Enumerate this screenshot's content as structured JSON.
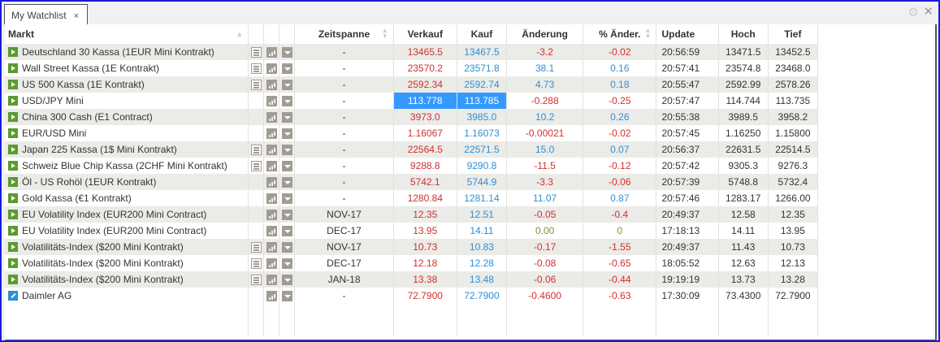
{
  "tab": {
    "label": "My Watchlist",
    "close": "×"
  },
  "window_icons": {
    "settings": "gear-icon",
    "close": "close-icon"
  },
  "columns": {
    "markt": "Markt",
    "zeitspanne": "Zeitspanne",
    "verkauf": "Verkauf",
    "kauf": "Kauf",
    "aenderung": "Änderung",
    "pct": "% Änder.",
    "update": "Update",
    "hoch": "Hoch",
    "tief": "Tief"
  },
  "colors": {
    "sell": "#d32f2f",
    "buy": "#2f8fd6",
    "up": "#2f8fd6",
    "down": "#d32f2f",
    "neutral": "#7a9a2a",
    "selected": "#3399ff",
    "market_icon": "#5a9b2e",
    "stock_icon": "#2b8fd6"
  },
  "rows": [
    {
      "name": "Deutschland 30 Kassa (1EUR Mini Kontrakt)",
      "icon": "play",
      "news": true,
      "period": "-",
      "sell": "13465.5",
      "buy": "13467.5",
      "chg": "-3.2",
      "pct": "-0.02",
      "dir": "down",
      "update": "20:56:59",
      "high": "13471.5",
      "low": "13452.5"
    },
    {
      "name": "Wall Street Kassa (1E Kontrakt)",
      "icon": "play",
      "news": true,
      "period": "-",
      "sell": "23570.2",
      "buy": "23571.8",
      "chg": "38.1",
      "pct": "0.16",
      "dir": "up",
      "update": "20:57:41",
      "high": "23574.8",
      "low": "23468.0"
    },
    {
      "name": "US 500 Kassa (1E Kontrakt)",
      "icon": "play",
      "news": true,
      "period": "-",
      "sell": "2592.34",
      "buy": "2592.74",
      "chg": "4.73",
      "pct": "0.18",
      "dir": "up",
      "update": "20:55:47",
      "high": "2592.99",
      "low": "2578.26"
    },
    {
      "name": "USD/JPY Mini",
      "icon": "play",
      "news": false,
      "period": "-",
      "sell": "113.778",
      "buy": "113.785",
      "chg": "-0.288",
      "pct": "-0.25",
      "dir": "down",
      "update": "20:57:47",
      "high": "114.744",
      "low": "113.735",
      "selected": true
    },
    {
      "name": "China 300 Cash (E1 Contract)",
      "icon": "play",
      "news": false,
      "period": "-",
      "sell": "3973.0",
      "buy": "3985.0",
      "chg": "10.2",
      "pct": "0.26",
      "dir": "up",
      "update": "20:55:38",
      "high": "3989.5",
      "low": "3958.2"
    },
    {
      "name": "EUR/USD Mini",
      "icon": "play",
      "news": false,
      "period": "-",
      "sell": "1.16067",
      "buy": "1.16073",
      "chg": "-0.00021",
      "pct": "-0.02",
      "dir": "down",
      "update": "20:57:45",
      "high": "1.16250",
      "low": "1.15800"
    },
    {
      "name": "Japan 225 Kassa (1$ Mini Kontrakt)",
      "icon": "play",
      "news": true,
      "period": "-",
      "sell": "22564.5",
      "buy": "22571.5",
      "chg": "15.0",
      "pct": "0.07",
      "dir": "up",
      "update": "20:56:37",
      "high": "22631.5",
      "low": "22514.5"
    },
    {
      "name": "Schweiz Blue Chip Kassa (2CHF Mini Kontrakt)",
      "icon": "play",
      "news": true,
      "period": "-",
      "sell": "9288.8",
      "buy": "9290.8",
      "chg": "-11.5",
      "pct": "-0.12",
      "dir": "down",
      "update": "20:57:42",
      "high": "9305.3",
      "low": "9276.3"
    },
    {
      "name": "Öl - US Rohöl (1EUR Kontrakt)",
      "icon": "play",
      "news": false,
      "period": "-",
      "sell": "5742.1",
      "buy": "5744.9",
      "chg": "-3.3",
      "pct": "-0.06",
      "dir": "down",
      "update": "20:57:39",
      "high": "5748.8",
      "low": "5732.4"
    },
    {
      "name": "Gold Kassa (€1 Kontrakt)",
      "icon": "play",
      "news": false,
      "period": "-",
      "sell": "1280.84",
      "buy": "1281.14",
      "chg": "11.07",
      "pct": "0.87",
      "dir": "up",
      "update": "20:57:46",
      "high": "1283.17",
      "low": "1266.00"
    },
    {
      "name": "EU Volatility Index (EUR200 Mini Contract)",
      "icon": "play",
      "news": false,
      "period": "NOV-17",
      "sell": "12.35",
      "buy": "12.51",
      "chg": "-0.05",
      "pct": "-0.4",
      "dir": "down",
      "update": "20:49:37",
      "high": "12.58",
      "low": "12.35"
    },
    {
      "name": "EU Volatility Index (EUR200 Mini Contract)",
      "icon": "play",
      "news": false,
      "period": "DEC-17",
      "sell": "13.95",
      "buy": "14.11",
      "chg": "0.00",
      "pct": "0",
      "dir": "flat",
      "update": "17:18:13",
      "high": "14.11",
      "low": "13.95"
    },
    {
      "name": "Volatilitäts-Index ($200 Mini Kontrakt)",
      "icon": "play",
      "news": true,
      "period": "NOV-17",
      "sell": "10.73",
      "buy": "10.83",
      "chg": "-0.17",
      "pct": "-1.55",
      "dir": "down",
      "update": "20:49:37",
      "high": "11.43",
      "low": "10.73"
    },
    {
      "name": "Volatilitäts-Index ($200 Mini Kontrakt)",
      "icon": "play",
      "news": true,
      "period": "DEC-17",
      "sell": "12.18",
      "buy": "12.28",
      "chg": "-0.08",
      "pct": "-0.65",
      "dir": "down",
      "update": "18:05:52",
      "high": "12.63",
      "low": "12.13"
    },
    {
      "name": "Volatilitäts-Index ($200 Mini Kontrakt)",
      "icon": "play",
      "news": true,
      "period": "JAN-18",
      "sell": "13.38",
      "buy": "13.48",
      "chg": "-0.06",
      "pct": "-0.44",
      "dir": "down",
      "update": "19:19:19",
      "high": "13.73",
      "low": "13.28"
    },
    {
      "name": "Daimler AG",
      "icon": "pen",
      "news": false,
      "period": "-",
      "sell": "72.7900",
      "buy": "72.7900",
      "chg": "-0.4600",
      "pct": "-0.63",
      "dir": "down",
      "update": "17:30:09",
      "high": "73.4300",
      "low": "72.7900"
    }
  ]
}
